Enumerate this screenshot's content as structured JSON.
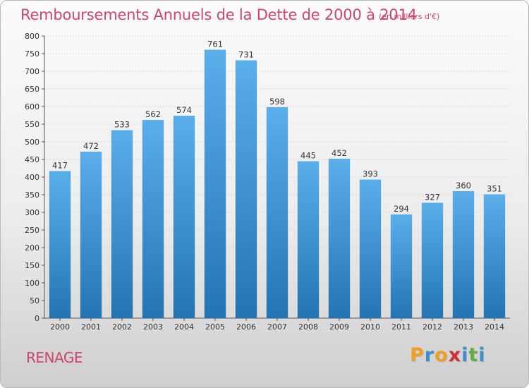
{
  "header": {
    "title": "Remboursements Annuels de la Dette de 2000 à 2014",
    "subtitle": "(en milliers d'€)"
  },
  "footer": {
    "city": "RENAGE",
    "logo_text": "Proxiti",
    "logo_letters": [
      {
        "ch": "P",
        "color": "#f0a020"
      },
      {
        "ch": "r",
        "color": "#3a8fd0"
      },
      {
        "ch": "o",
        "color": "#f0a020"
      },
      {
        "ch": "x",
        "color": "#d03030"
      },
      {
        "ch": "i",
        "color": "#3a8fd0"
      },
      {
        "ch": "t",
        "color": "#60b040"
      },
      {
        "ch": "i",
        "color": "#3a8fd0"
      }
    ]
  },
  "colors": {
    "accent": "#d0456a",
    "bar_top": "#5aaeea",
    "bar_bottom": "#2474b4",
    "grid": "#d8d8d8"
  },
  "chart_data": {
    "type": "bar",
    "title": "Remboursements Annuels de la Dette de 2000 à 2014",
    "subtitle": "(en milliers d'€)",
    "xlabel": "",
    "ylabel": "",
    "categories": [
      "2000",
      "2001",
      "2002",
      "2003",
      "2004",
      "2005",
      "2006",
      "2007",
      "2008",
      "2009",
      "2010",
      "2011",
      "2012",
      "2013",
      "2014"
    ],
    "values": [
      417,
      472,
      533,
      562,
      574,
      761,
      731,
      598,
      445,
      452,
      393,
      294,
      327,
      360,
      351
    ],
    "ylim": [
      0,
      800
    ],
    "yticks": [
      0,
      50,
      100,
      150,
      200,
      250,
      300,
      350,
      400,
      450,
      500,
      550,
      600,
      650,
      700,
      750,
      800
    ],
    "grid": true,
    "data_labels": true
  }
}
